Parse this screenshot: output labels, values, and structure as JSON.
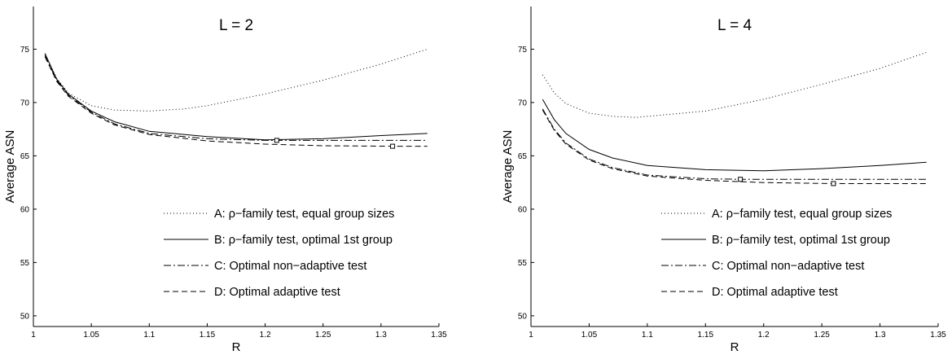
{
  "chart_data": [
    {
      "type": "line",
      "title": "L = 2",
      "xlabel": "R",
      "ylabel": "Average ASN",
      "xlim": [
        1,
        1.35
      ],
      "ylim": [
        49,
        79
      ],
      "xticks": [
        "1",
        "1.05",
        "1.1",
        "1.15",
        "1.2",
        "1.25",
        "1.3",
        "1.35"
      ],
      "yticks": [
        "50",
        "55",
        "60",
        "65",
        "70",
        "75"
      ],
      "grid": false,
      "legend_position": "lower-right",
      "series": [
        {
          "name": "A: ρ−family test, equal group sizes",
          "style": "dotted",
          "x": [
            1.01,
            1.02,
            1.03,
            1.05,
            1.07,
            1.1,
            1.13,
            1.15,
            1.2,
            1.25,
            1.3,
            1.34
          ],
          "y": [
            74.5,
            72.3,
            70.9,
            69.7,
            69.3,
            69.2,
            69.4,
            69.7,
            70.8,
            72.1,
            73.6,
            75.0
          ]
        },
        {
          "name": "B: ρ−family test, optimal 1st group",
          "style": "solid",
          "x": [
            1.01,
            1.02,
            1.03,
            1.05,
            1.07,
            1.1,
            1.15,
            1.2,
            1.25,
            1.3,
            1.34
          ],
          "y": [
            74.6,
            72.2,
            70.8,
            69.2,
            68.2,
            67.3,
            66.8,
            66.5,
            66.6,
            66.9,
            67.1
          ]
        },
        {
          "name": "C: Optimal non−adaptive test",
          "style": "dashdot",
          "x": [
            1.01,
            1.02,
            1.03,
            1.05,
            1.07,
            1.1,
            1.15,
            1.2,
            1.21,
            1.25,
            1.3,
            1.34
          ],
          "y": [
            74.4,
            72.1,
            70.7,
            69.1,
            68.0,
            67.1,
            66.6,
            66.45,
            66.45,
            66.45,
            66.45,
            66.45
          ]
        },
        {
          "name": "D: Optimal adaptive test",
          "style": "dashed",
          "x": [
            1.01,
            1.02,
            1.03,
            1.05,
            1.07,
            1.1,
            1.15,
            1.2,
            1.25,
            1.31,
            1.34
          ],
          "y": [
            74.3,
            72.0,
            70.6,
            69.0,
            67.9,
            67.0,
            66.4,
            66.1,
            65.95,
            65.9,
            65.9
          ]
        }
      ],
      "markers": [
        {
          "x": 1.21,
          "y": 66.45
        },
        {
          "x": 1.31,
          "y": 65.9
        }
      ]
    },
    {
      "type": "line",
      "title": "L = 4",
      "xlabel": "R",
      "ylabel": "Average ASN",
      "xlim": [
        1,
        1.35
      ],
      "ylim": [
        49,
        79
      ],
      "xticks": [
        "1",
        "1.05",
        "1.1",
        "1.15",
        "1.2",
        "1.25",
        "1.3",
        "1.35"
      ],
      "yticks": [
        "50",
        "55",
        "60",
        "65",
        "70",
        "75"
      ],
      "grid": false,
      "legend_position": "lower-right",
      "series": [
        {
          "name": "A: ρ−family test, equal group sizes",
          "style": "dotted",
          "x": [
            1.01,
            1.02,
            1.03,
            1.05,
            1.07,
            1.09,
            1.1,
            1.15,
            1.2,
            1.25,
            1.3,
            1.34
          ],
          "y": [
            72.6,
            70.9,
            69.9,
            69.0,
            68.7,
            68.6,
            68.7,
            69.2,
            70.3,
            71.7,
            73.2,
            74.7
          ]
        },
        {
          "name": "B: ρ−family test, optimal 1st group",
          "style": "solid",
          "x": [
            1.01,
            1.02,
            1.03,
            1.05,
            1.07,
            1.1,
            1.15,
            1.2,
            1.25,
            1.3,
            1.34
          ],
          "y": [
            70.3,
            68.4,
            67.1,
            65.6,
            64.8,
            64.1,
            63.7,
            63.6,
            63.8,
            64.1,
            64.4
          ]
        },
        {
          "name": "C: Optimal non−adaptive test",
          "style": "dashdot",
          "x": [
            1.01,
            1.02,
            1.03,
            1.05,
            1.07,
            1.1,
            1.15,
            1.18,
            1.25,
            1.3,
            1.34
          ],
          "y": [
            69.4,
            67.5,
            66.2,
            64.7,
            63.9,
            63.2,
            62.85,
            62.8,
            62.8,
            62.8,
            62.8
          ]
        },
        {
          "name": "D: Optimal adaptive test",
          "style": "dashed",
          "x": [
            1.01,
            1.02,
            1.03,
            1.05,
            1.07,
            1.1,
            1.15,
            1.2,
            1.26,
            1.3,
            1.34
          ],
          "y": [
            69.3,
            67.4,
            66.1,
            64.6,
            63.8,
            63.1,
            62.7,
            62.5,
            62.4,
            62.4,
            62.4
          ]
        }
      ],
      "markers": [
        {
          "x": 1.18,
          "y": 62.8
        },
        {
          "x": 1.26,
          "y": 62.4
        }
      ]
    }
  ]
}
